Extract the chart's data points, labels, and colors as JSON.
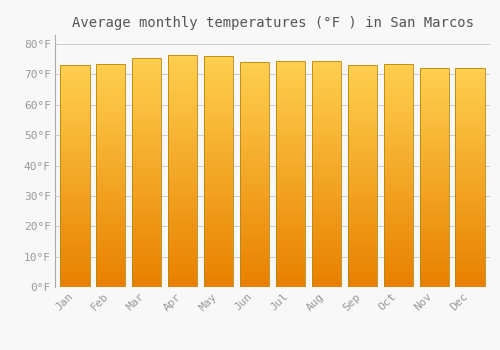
{
  "title": "Average monthly temperatures (°F ) in San Marcos",
  "months": [
    "Jan",
    "Feb",
    "Mar",
    "Apr",
    "May",
    "Jun",
    "Jul",
    "Aug",
    "Sep",
    "Oct",
    "Nov",
    "Dec"
  ],
  "values": [
    73.0,
    73.5,
    75.5,
    76.5,
    76.0,
    74.0,
    74.5,
    74.5,
    73.0,
    73.5,
    72.0,
    72.0
  ],
  "bar_color_mid": "#FFBB00",
  "bar_color_bottom": "#E88000",
  "bar_color_top": "#FFD050",
  "bar_edge_color": "#B8860B",
  "background_color": "#F8F8F8",
  "grid_color": "#CCCCCC",
  "yticks": [
    0,
    10,
    20,
    30,
    40,
    50,
    60,
    70,
    80
  ],
  "ylim": [
    0,
    83
  ],
  "title_fontsize": 10,
  "tick_fontsize": 8,
  "font_family": "monospace"
}
